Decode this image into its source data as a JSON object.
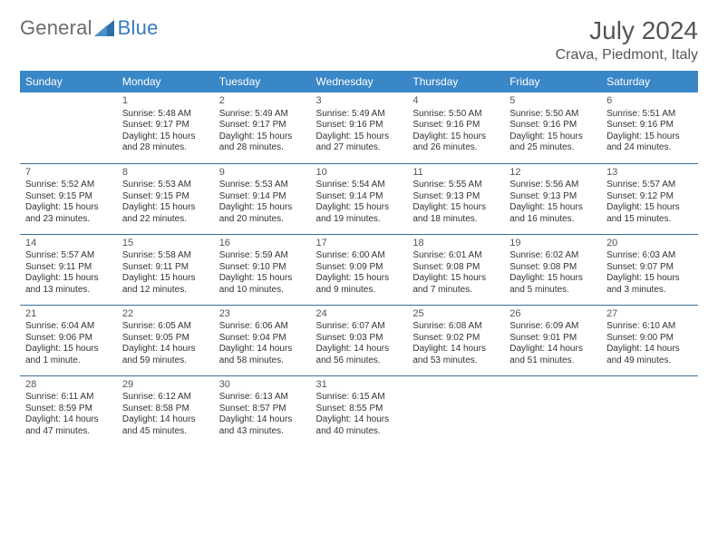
{
  "logo": {
    "text1": "General",
    "text2": "Blue",
    "sail_color": "#2f6fa8"
  },
  "title": "July 2024",
  "location": "Crava, Piedmont, Italy",
  "header_bg": "#3a87c7",
  "header_fg": "#ffffff",
  "row_border_color": "#3a6e9a",
  "background_color": "#ffffff",
  "text_color": "#333333",
  "title_color": "#555555",
  "title_fontsize": 28,
  "location_fontsize": 16,
  "dayheader_fontsize": 12,
  "cell_fontsize": 10,
  "day_headers": [
    "Sunday",
    "Monday",
    "Tuesday",
    "Wednesday",
    "Thursday",
    "Friday",
    "Saturday"
  ],
  "weeks": [
    [
      null,
      {
        "n": "1",
        "sr": "Sunrise: 5:48 AM",
        "ss": "Sunset: 9:17 PM",
        "dl": "Daylight: 15 hours and 28 minutes."
      },
      {
        "n": "2",
        "sr": "Sunrise: 5:49 AM",
        "ss": "Sunset: 9:17 PM",
        "dl": "Daylight: 15 hours and 28 minutes."
      },
      {
        "n": "3",
        "sr": "Sunrise: 5:49 AM",
        "ss": "Sunset: 9:16 PM",
        "dl": "Daylight: 15 hours and 27 minutes."
      },
      {
        "n": "4",
        "sr": "Sunrise: 5:50 AM",
        "ss": "Sunset: 9:16 PM",
        "dl": "Daylight: 15 hours and 26 minutes."
      },
      {
        "n": "5",
        "sr": "Sunrise: 5:50 AM",
        "ss": "Sunset: 9:16 PM",
        "dl": "Daylight: 15 hours and 25 minutes."
      },
      {
        "n": "6",
        "sr": "Sunrise: 5:51 AM",
        "ss": "Sunset: 9:16 PM",
        "dl": "Daylight: 15 hours and 24 minutes."
      }
    ],
    [
      {
        "n": "7",
        "sr": "Sunrise: 5:52 AM",
        "ss": "Sunset: 9:15 PM",
        "dl": "Daylight: 15 hours and 23 minutes."
      },
      {
        "n": "8",
        "sr": "Sunrise: 5:53 AM",
        "ss": "Sunset: 9:15 PM",
        "dl": "Daylight: 15 hours and 22 minutes."
      },
      {
        "n": "9",
        "sr": "Sunrise: 5:53 AM",
        "ss": "Sunset: 9:14 PM",
        "dl": "Daylight: 15 hours and 20 minutes."
      },
      {
        "n": "10",
        "sr": "Sunrise: 5:54 AM",
        "ss": "Sunset: 9:14 PM",
        "dl": "Daylight: 15 hours and 19 minutes."
      },
      {
        "n": "11",
        "sr": "Sunrise: 5:55 AM",
        "ss": "Sunset: 9:13 PM",
        "dl": "Daylight: 15 hours and 18 minutes."
      },
      {
        "n": "12",
        "sr": "Sunrise: 5:56 AM",
        "ss": "Sunset: 9:13 PM",
        "dl": "Daylight: 15 hours and 16 minutes."
      },
      {
        "n": "13",
        "sr": "Sunrise: 5:57 AM",
        "ss": "Sunset: 9:12 PM",
        "dl": "Daylight: 15 hours and 15 minutes."
      }
    ],
    [
      {
        "n": "14",
        "sr": "Sunrise: 5:57 AM",
        "ss": "Sunset: 9:11 PM",
        "dl": "Daylight: 15 hours and 13 minutes."
      },
      {
        "n": "15",
        "sr": "Sunrise: 5:58 AM",
        "ss": "Sunset: 9:11 PM",
        "dl": "Daylight: 15 hours and 12 minutes."
      },
      {
        "n": "16",
        "sr": "Sunrise: 5:59 AM",
        "ss": "Sunset: 9:10 PM",
        "dl": "Daylight: 15 hours and 10 minutes."
      },
      {
        "n": "17",
        "sr": "Sunrise: 6:00 AM",
        "ss": "Sunset: 9:09 PM",
        "dl": "Daylight: 15 hours and 9 minutes."
      },
      {
        "n": "18",
        "sr": "Sunrise: 6:01 AM",
        "ss": "Sunset: 9:08 PM",
        "dl": "Daylight: 15 hours and 7 minutes."
      },
      {
        "n": "19",
        "sr": "Sunrise: 6:02 AM",
        "ss": "Sunset: 9:08 PM",
        "dl": "Daylight: 15 hours and 5 minutes."
      },
      {
        "n": "20",
        "sr": "Sunrise: 6:03 AM",
        "ss": "Sunset: 9:07 PM",
        "dl": "Daylight: 15 hours and 3 minutes."
      }
    ],
    [
      {
        "n": "21",
        "sr": "Sunrise: 6:04 AM",
        "ss": "Sunset: 9:06 PM",
        "dl": "Daylight: 15 hours and 1 minute."
      },
      {
        "n": "22",
        "sr": "Sunrise: 6:05 AM",
        "ss": "Sunset: 9:05 PM",
        "dl": "Daylight: 14 hours and 59 minutes."
      },
      {
        "n": "23",
        "sr": "Sunrise: 6:06 AM",
        "ss": "Sunset: 9:04 PM",
        "dl": "Daylight: 14 hours and 58 minutes."
      },
      {
        "n": "24",
        "sr": "Sunrise: 6:07 AM",
        "ss": "Sunset: 9:03 PM",
        "dl": "Daylight: 14 hours and 56 minutes."
      },
      {
        "n": "25",
        "sr": "Sunrise: 6:08 AM",
        "ss": "Sunset: 9:02 PM",
        "dl": "Daylight: 14 hours and 53 minutes."
      },
      {
        "n": "26",
        "sr": "Sunrise: 6:09 AM",
        "ss": "Sunset: 9:01 PM",
        "dl": "Daylight: 14 hours and 51 minutes."
      },
      {
        "n": "27",
        "sr": "Sunrise: 6:10 AM",
        "ss": "Sunset: 9:00 PM",
        "dl": "Daylight: 14 hours and 49 minutes."
      }
    ],
    [
      {
        "n": "28",
        "sr": "Sunrise: 6:11 AM",
        "ss": "Sunset: 8:59 PM",
        "dl": "Daylight: 14 hours and 47 minutes."
      },
      {
        "n": "29",
        "sr": "Sunrise: 6:12 AM",
        "ss": "Sunset: 8:58 PM",
        "dl": "Daylight: 14 hours and 45 minutes."
      },
      {
        "n": "30",
        "sr": "Sunrise: 6:13 AM",
        "ss": "Sunset: 8:57 PM",
        "dl": "Daylight: 14 hours and 43 minutes."
      },
      {
        "n": "31",
        "sr": "Sunrise: 6:15 AM",
        "ss": "Sunset: 8:55 PM",
        "dl": "Daylight: 14 hours and 40 minutes."
      },
      null,
      null,
      null
    ]
  ]
}
